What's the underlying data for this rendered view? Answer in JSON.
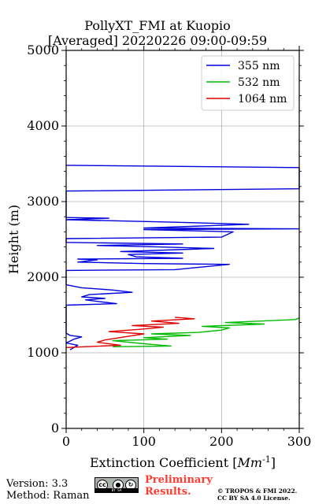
{
  "chart_data": {
    "type": "line",
    "title": "PollyXT_FMI at Kuopio",
    "subtitle": "[Averaged] 20220226 09:00-09:59",
    "xlabel": "Extinction Coefficient [",
    "xlabel_unit": "Mm",
    "xlabel_exp": "-1",
    "xlabel_end": "]",
    "ylabel": "Height (m)",
    "xlim": [
      0,
      300
    ],
    "ylim": [
      0,
      5000
    ],
    "x_ticks": [
      "0",
      "100",
      "200",
      "300"
    ],
    "y_ticks": [
      "0",
      "1000",
      "2000",
      "3000",
      "4000",
      "5000"
    ],
    "grid": true,
    "legend_placement": "top-right",
    "series": [
      {
        "name": "355 nm",
        "color": "#0000dd",
        "points": [
          [
            5,
            1040
          ],
          [
            15,
            1100
          ],
          [
            0,
            1130
          ],
          [
            10,
            1180
          ],
          [
            20,
            1210
          ],
          [
            5,
            1230
          ],
          [
            0,
            1260
          ],
          [
            0,
            1500
          ],
          [
            0,
            1630
          ],
          [
            65,
            1650
          ],
          [
            40,
            1680
          ],
          [
            25,
            1700
          ],
          [
            50,
            1720
          ],
          [
            20,
            1740
          ],
          [
            30,
            1770
          ],
          [
            85,
            1800
          ],
          [
            60,
            1830
          ],
          [
            20,
            1860
          ],
          [
            0,
            1900
          ],
          [
            0,
            1950
          ],
          [
            0,
            2000
          ],
          [
            0,
            2090
          ],
          [
            140,
            2100
          ],
          [
            210,
            2170
          ],
          [
            100,
            2180
          ],
          [
            15,
            2200
          ],
          [
            40,
            2230
          ],
          [
            15,
            2240
          ],
          [
            150,
            2250
          ],
          [
            90,
            2270
          ],
          [
            80,
            2300
          ],
          [
            150,
            2320
          ],
          [
            70,
            2340
          ],
          [
            160,
            2370
          ],
          [
            190,
            2380
          ],
          [
            120,
            2400
          ],
          [
            40,
            2420
          ],
          [
            150,
            2440
          ],
          [
            0,
            2460
          ],
          [
            0,
            2510
          ],
          [
            200,
            2530
          ],
          [
            215,
            2600
          ],
          [
            100,
            2630
          ],
          [
            300,
            2640
          ],
          [
            100,
            2650
          ],
          [
            235,
            2700
          ],
          [
            130,
            2730
          ],
          [
            0,
            2760
          ],
          [
            55,
            2780
          ],
          [
            0,
            2790
          ],
          [
            0,
            2900
          ],
          [
            0,
            3000
          ],
          [
            0,
            3140
          ],
          [
            300,
            3170
          ],
          [
            300,
            3450
          ],
          [
            0,
            3480
          ]
        ]
      },
      {
        "name": "532 nm",
        "color": "#00bb00",
        "points": [
          [
            60,
            1080
          ],
          [
            135,
            1090
          ],
          [
            100,
            1120
          ],
          [
            60,
            1160
          ],
          [
            130,
            1180
          ],
          [
            100,
            1200
          ],
          [
            160,
            1230
          ],
          [
            110,
            1250
          ],
          [
            170,
            1270
          ],
          [
            200,
            1300
          ],
          [
            210,
            1330
          ],
          [
            175,
            1350
          ],
          [
            255,
            1380
          ],
          [
            205,
            1400
          ],
          [
            295,
            1440
          ],
          [
            300,
            1460
          ]
        ]
      },
      {
        "name": "1064 nm",
        "color": "#dd0000",
        "points": [
          [
            0,
            1070
          ],
          [
            70,
            1100
          ],
          [
            40,
            1140
          ],
          [
            50,
            1170
          ],
          [
            75,
            1210
          ],
          [
            100,
            1250
          ],
          [
            55,
            1280
          ],
          [
            95,
            1310
          ],
          [
            125,
            1340
          ],
          [
            85,
            1360
          ],
          [
            145,
            1390
          ],
          [
            110,
            1420
          ],
          [
            165,
            1450
          ],
          [
            140,
            1470
          ]
        ]
      }
    ]
  },
  "footer": {
    "version": "Version: 3.3",
    "method": "Method: Raman",
    "cc_text": "cc",
    "by_text": "BY",
    "sa_text": "SA",
    "preliminary_line1": "Preliminary",
    "preliminary_line2": "Results.",
    "copyright_line1": "© TROPOS & FMI 2022.",
    "copyright_line2": "CC BY SA 4.0 License."
  }
}
